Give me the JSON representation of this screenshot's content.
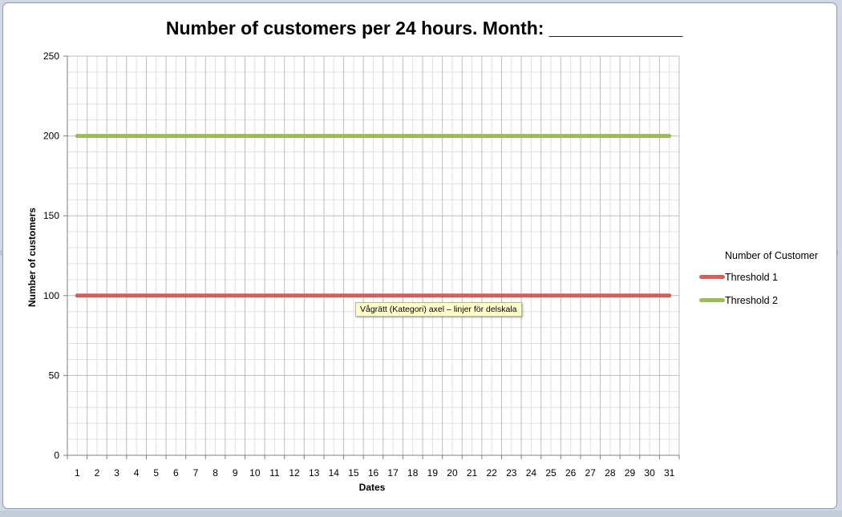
{
  "chart_data": {
    "type": "line",
    "title": "Number of customers per 24 hours. Month: _____________",
    "xlabel": "Dates",
    "ylabel": "Number of customers",
    "categories": [
      "1",
      "2",
      "3",
      "4",
      "5",
      "6",
      "7",
      "8",
      "9",
      "10",
      "11",
      "12",
      "13",
      "14",
      "15",
      "16",
      "17",
      "18",
      "19",
      "20",
      "21",
      "22",
      "23",
      "24",
      "25",
      "26",
      "27",
      "28",
      "29",
      "30",
      "31"
    ],
    "ylim": [
      0,
      250
    ],
    "y_ticks": [
      0,
      50,
      100,
      150,
      200,
      250
    ],
    "y_minor_step": 10,
    "grid": true,
    "legend_position": "right",
    "legend_title": "Number of Customer",
    "series": [
      {
        "name": "Threshold 1",
        "color": "#d0605b",
        "values": [
          100,
          100,
          100,
          100,
          100,
          100,
          100,
          100,
          100,
          100,
          100,
          100,
          100,
          100,
          100,
          100,
          100,
          100,
          100,
          100,
          100,
          100,
          100,
          100,
          100,
          100,
          100,
          100,
          100,
          100,
          100
        ]
      },
      {
        "name": "Threshold 2",
        "color": "#9bbb59",
        "values": [
          200,
          200,
          200,
          200,
          200,
          200,
          200,
          200,
          200,
          200,
          200,
          200,
          200,
          200,
          200,
          200,
          200,
          200,
          200,
          200,
          200,
          200,
          200,
          200,
          200,
          200,
          200,
          200,
          200,
          200,
          200
        ]
      }
    ]
  },
  "tooltip": {
    "text": "Vågrätt (Kategori) axel – linjer för delskala"
  }
}
